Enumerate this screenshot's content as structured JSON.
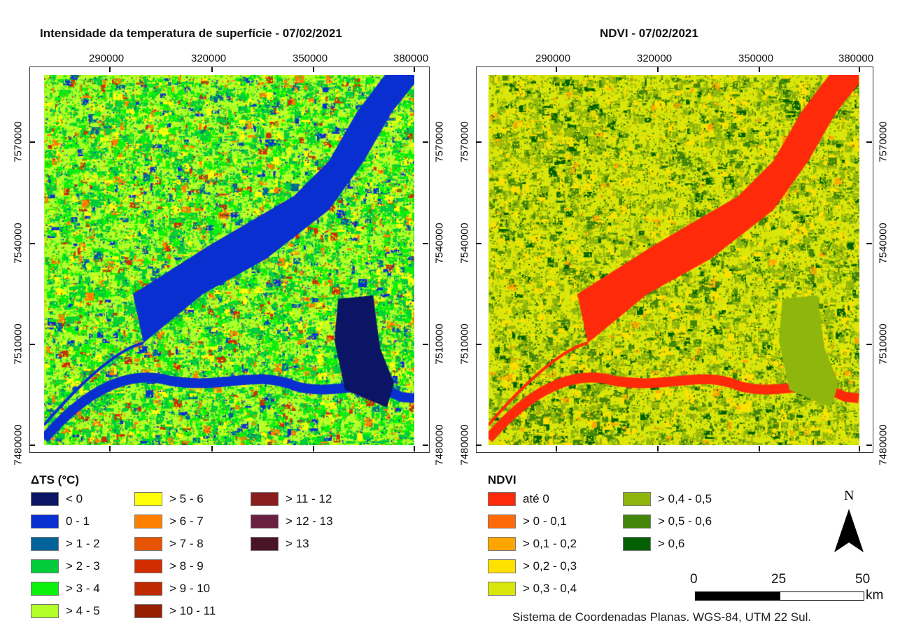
{
  "maps": [
    {
      "id": "lst",
      "title": "Intensidade da temperatura de superfície - 07/02/2021",
      "x_ticks": [
        "290000",
        "320000",
        "350000",
        "380000"
      ],
      "y_ticks": [
        "7570000",
        "7540000",
        "7510000",
        "7480000"
      ],
      "legend": {
        "title": "ΔTS (°C)",
        "items": [
          {
            "label": "< 0",
            "color": "#0c1466"
          },
          {
            "label": "0 - 1",
            "color": "#0a2fd0"
          },
          {
            "label": "> 1 - 2",
            "color": "#02639a"
          },
          {
            "label": "> 2 - 3",
            "color": "#02cc3a"
          },
          {
            "label": "> 3 - 4",
            "color": "#0cf10c"
          },
          {
            "label": "> 4 - 5",
            "color": "#b3ff28"
          },
          {
            "label": "> 5 - 6",
            "color": "#ffff0a"
          },
          {
            "label": "> 6 - 7",
            "color": "#ff7f00"
          },
          {
            "label": "> 7 - 8",
            "color": "#e65400"
          },
          {
            "label": "> 8 - 9",
            "color": "#d12d00"
          },
          {
            "label": "> 9 - 10",
            "color": "#c02a00"
          },
          {
            "label": "> 10 - 11",
            "color": "#942000"
          },
          {
            "label": "> 11 - 12",
            "color": "#8a1d1e"
          },
          {
            "label": "> 12 - 13",
            "color": "#6a2040"
          },
          {
            "label": "> 13",
            "color": "#4a1428"
          }
        ]
      }
    },
    {
      "id": "ndvi",
      "title": "NDVI - 07/02/2021",
      "x_ticks": [
        "290000",
        "320000",
        "350000",
        "380000"
      ],
      "y_ticks": [
        "7570000",
        "7540000",
        "7510000",
        "7480000"
      ],
      "legend": {
        "title": "NDVI",
        "items": [
          {
            "label": "até 0",
            "color": "#ff2a0a"
          },
          {
            "label": "> 0 - 0,1",
            "color": "#ff6a08"
          },
          {
            "label": "> 0,1 - 0,2",
            "color": "#ffa500"
          },
          {
            "label": "> 0,2 - 0,3",
            "color": "#ffe100"
          },
          {
            "label": "> 0,3 - 0,4",
            "color": "#d8e60a"
          },
          {
            "label": "> 0,4 - 0,5",
            "color": "#8fb60c"
          },
          {
            "label": "> 0,5 - 0,6",
            "color": "#43860a"
          },
          {
            "label": "> 0,6",
            "color": "#036003"
          }
        ]
      }
    }
  ],
  "north_arrow": {
    "label": "N"
  },
  "scale_bar": {
    "labels": [
      "0",
      "25",
      "50"
    ],
    "unit": "km"
  },
  "footer": "Sistema de Coordenadas Planas. WGS-84, UTM 22 Sul."
}
